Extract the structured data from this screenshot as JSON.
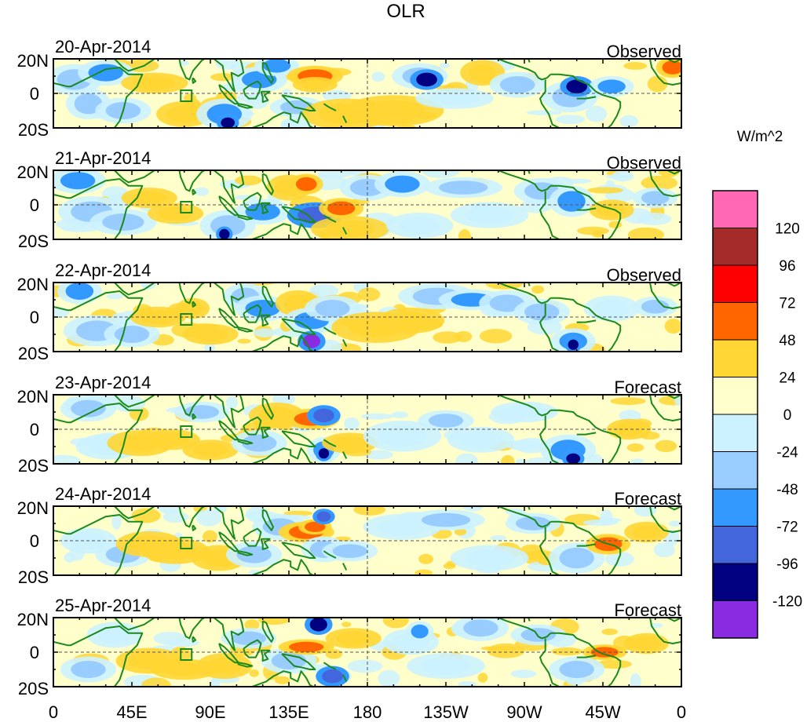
{
  "title": "OLR",
  "colorbar": {
    "unit": "W/m^2",
    "labels": [
      "120",
      "96",
      "72",
      "48",
      "24",
      "0",
      "-24",
      "-48",
      "-72",
      "-96",
      "-120"
    ],
    "colors": [
      "#ff69b4",
      "#a52a2a",
      "#ff0000",
      "#ff6600",
      "#ffd633",
      "#ffffcc",
      "#ccf2ff",
      "#99ccff",
      "#3399ff",
      "#4466dd",
      "#000080",
      "#8a2be2"
    ]
  },
  "y_ticks": {
    "north": "20N",
    "equator": "0",
    "south": "20S"
  },
  "x_ticks": [
    "0",
    "45E",
    "90E",
    "135E",
    "180",
    "135W",
    "90W",
    "45W",
    "0"
  ],
  "panels": [
    {
      "date": "20-Apr-2014",
      "kind": "Observed"
    },
    {
      "date": "21-Apr-2014",
      "kind": "Observed"
    },
    {
      "date": "22-Apr-2014",
      "kind": "Observed"
    },
    {
      "date": "23-Apr-2014",
      "kind": "Forecast"
    },
    {
      "date": "24-Apr-2014",
      "kind": "Forecast"
    },
    {
      "date": "25-Apr-2014",
      "kind": "Forecast"
    }
  ],
  "chart_data": {
    "type": "heatmap",
    "title": "OLR",
    "colorbar_label": "W/m^2",
    "colorbar_levels": [
      -120,
      -96,
      -72,
      -48,
      -24,
      0,
      24,
      48,
      72,
      96,
      120
    ],
    "lat_range": [
      -20,
      20
    ],
    "lon_range": [
      0,
      360
    ],
    "panel_titles": [
      "20-Apr-2014",
      "21-Apr-2014",
      "22-Apr-2014",
      "23-Apr-2014",
      "24-Apr-2014",
      "25-Apr-2014"
    ],
    "panel_types": [
      "Observed",
      "Observed",
      "Observed",
      "Forecast",
      "Forecast",
      "Forecast"
    ]
  }
}
